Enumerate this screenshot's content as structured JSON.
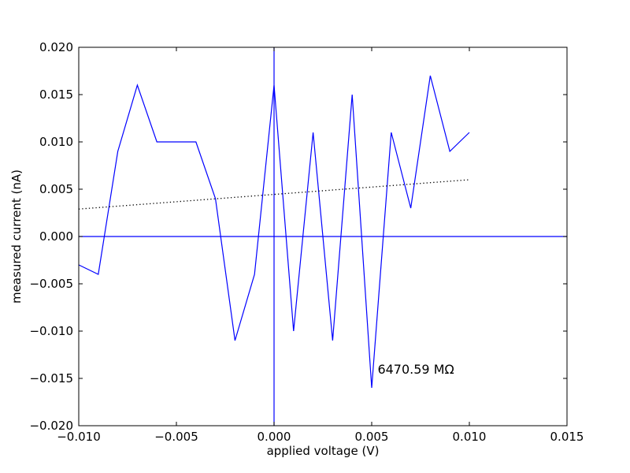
{
  "chart_data": {
    "type": "line",
    "title": "",
    "xlabel": "applied voltage (V)",
    "ylabel": "measured current (nA)",
    "xlim": [
      -0.01,
      0.015
    ],
    "ylim": [
      -0.02,
      0.02
    ],
    "grid": false,
    "x_ticks": [
      -0.01,
      -0.005,
      0.0,
      0.005,
      0.01,
      0.015
    ],
    "x_tick_labels": [
      "−0.010",
      "−0.005",
      "0.000",
      "0.005",
      "0.010",
      "0.015"
    ],
    "y_ticks": [
      -0.02,
      -0.015,
      -0.01,
      -0.005,
      0.0,
      0.005,
      0.01,
      0.015,
      0.02
    ],
    "y_tick_labels": [
      "−0.020",
      "−0.015",
      "−0.010",
      "−0.005",
      "0.000",
      "0.005",
      "0.010",
      "0.015",
      "0.020"
    ],
    "series": [
      {
        "style": "solid",
        "color": "#0000ff",
        "x": [
          -0.01,
          -0.009,
          -0.008,
          -0.007,
          -0.006,
          -0.005,
          -0.004,
          -0.003,
          -0.002,
          -0.001,
          0.0,
          0.001,
          0.002,
          0.003,
          0.004,
          0.005,
          0.006,
          0.007,
          0.008,
          0.009,
          0.01
        ],
        "y": [
          -0.003,
          -0.004,
          0.009,
          0.016,
          0.01,
          0.01,
          0.01,
          0.004,
          -0.011,
          -0.004,
          0.016,
          -0.01,
          0.011,
          -0.011,
          0.015,
          -0.016,
          0.011,
          0.003,
          0.017,
          0.009,
          0.011
        ]
      },
      {
        "style": "dotted",
        "color": "#000000",
        "x": [
          -0.01,
          0.01
        ],
        "y": [
          0.0029,
          0.006
        ]
      }
    ],
    "reference_lines": [
      {
        "orientation": "horizontal",
        "value": 0.0,
        "color": "#0000ff"
      },
      {
        "orientation": "vertical",
        "value": 0.0,
        "color": "#0000ff"
      }
    ],
    "annotations": [
      {
        "text": "6470.59 MΩ",
        "x": 0.0053,
        "y": -0.0145
      }
    ]
  }
}
